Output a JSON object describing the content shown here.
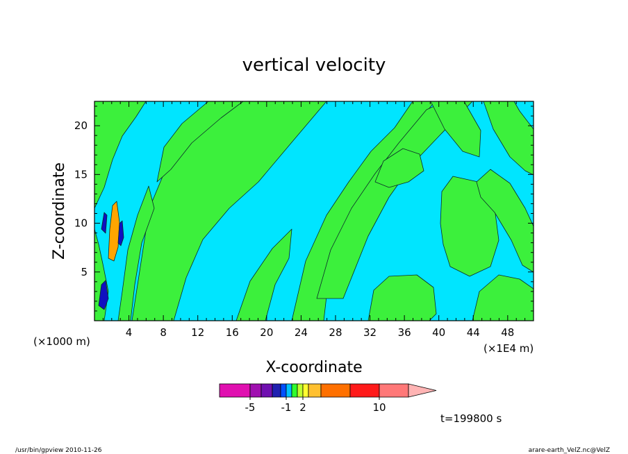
{
  "chart_data": {
    "type": "heatmap",
    "title": "vertical velocity",
    "xlabel": "X-coordinate",
    "ylabel": "Z-coordinate",
    "x_unit_left": "(×1000 m)",
    "x_unit_right": "(×1E4 m)",
    "xlim": [
      0,
      51
    ],
    "ylim": [
      0,
      22.5
    ],
    "xticks": [
      4,
      8,
      12,
      16,
      20,
      24,
      28,
      32,
      36,
      40,
      44,
      48
    ],
    "yticks": [
      5,
      10,
      15,
      20
    ],
    "time_label": "t=199800 s",
    "colorbar": {
      "levels": [
        -10,
        -5,
        -4,
        -3,
        -2,
        -1,
        0,
        1,
        2,
        3,
        4,
        5,
        10,
        15,
        20
      ],
      "labels": [
        {
          "value": -5,
          "text": "-5"
        },
        {
          "value": -1,
          "text": "-1"
        },
        {
          "value": 2,
          "text": "2"
        },
        {
          "value": 10,
          "text": "10"
        }
      ],
      "colors": [
        "#e010b0",
        "#a010b0",
        "#7010b0",
        "#2020b0",
        "#0050ff",
        "#00c0ff",
        "#30ff30",
        "#c0ff30",
        "#ffff30",
        "#ffc030",
        "#ff7000",
        "#ff1a1a",
        "#ff7878"
      ],
      "extend_color": "#ffb4b4"
    },
    "fields": {
      "background": "#00e5ff",
      "positive": "#3cf03c",
      "strong_positive": "#ffa500",
      "negative": "#1010c0"
    }
  },
  "footer": {
    "left": "/usr/bin/gpview   2010-11-26",
    "right": "arare-earth_VelZ.nc@VelZ"
  }
}
